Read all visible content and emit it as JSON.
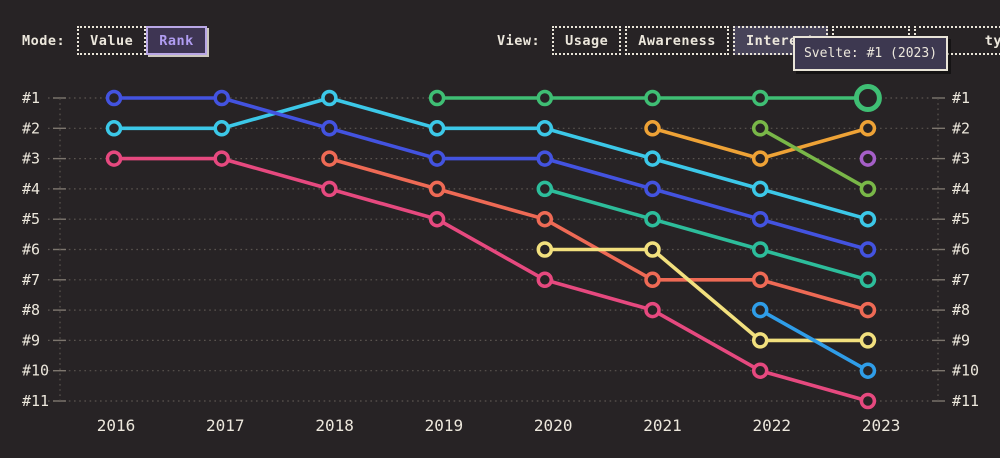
{
  "colors": {
    "background": "#272325",
    "text": "#ece7dc",
    "grid": "#5b5550",
    "tick": "#7d766e",
    "selected_mode_bg": "#3e3553",
    "selected_mode_border": "#b9a7e6",
    "selected_mode_text": "#b19df2",
    "selected_view_bg": "#484459",
    "tooltip_bg": "#3d3850",
    "tooltip_border": "#e9e4d8"
  },
  "mode_toolbar": {
    "label": "Mode:",
    "buttons": [
      {
        "label": "Value",
        "selected": false
      },
      {
        "label": "Rank",
        "selected": true
      }
    ]
  },
  "view_toolbar": {
    "label": "View:",
    "buttons": [
      {
        "label": "Usage",
        "selected": false
      },
      {
        "label": "Awareness",
        "selected": false
      },
      {
        "label": "Interest",
        "selected": true
      },
      {
        "label": "",
        "selected": false,
        "covered_by_tooltip": true
      },
      {
        "label": "ty",
        "selected": false,
        "partially_covered_by_tooltip": true
      }
    ]
  },
  "tooltip": {
    "text": "Svelte: #1 (2023)"
  },
  "chart_data": {
    "type": "line",
    "subtype": "bump-rank-chart",
    "x": [
      2016,
      2017,
      2018,
      2019,
      2020,
      2021,
      2022,
      2023
    ],
    "rank_labels": [
      "#1",
      "#2",
      "#3",
      "#4",
      "#5",
      "#6",
      "#7",
      "#8",
      "#9",
      "#10",
      "#11"
    ],
    "ylim": [
      1,
      11
    ],
    "grid": "dotted",
    "series": [
      {
        "name": "Svelte",
        "color": "#3fbe74",
        "ranks": [
          null,
          null,
          null,
          1,
          1,
          1,
          1,
          1
        ]
      },
      {
        "name": "orange",
        "color": "#eea236",
        "ranks": [
          null,
          null,
          null,
          null,
          null,
          2,
          3,
          2
        ]
      },
      {
        "name": "purple",
        "color": "#a55fc8",
        "ranks": [
          null,
          null,
          null,
          null,
          null,
          null,
          null,
          3
        ]
      },
      {
        "name": "olive",
        "color": "#79b748",
        "ranks": [
          null,
          null,
          null,
          null,
          null,
          null,
          2,
          4
        ]
      },
      {
        "name": "cyan",
        "color": "#3cc8e8",
        "ranks": [
          2,
          2,
          1,
          2,
          2,
          3,
          4,
          5
        ]
      },
      {
        "name": "blue",
        "color": "#4353e0",
        "ranks": [
          1,
          1,
          2,
          3,
          3,
          4,
          5,
          6
        ]
      },
      {
        "name": "teal",
        "color": "#2dbd9b",
        "ranks": [
          null,
          null,
          null,
          null,
          4,
          5,
          6,
          7
        ]
      },
      {
        "name": "salmon",
        "color": "#ee6a55",
        "ranks": [
          null,
          null,
          3,
          4,
          5,
          7,
          7,
          8
        ]
      },
      {
        "name": "yellow",
        "color": "#f2e07e",
        "ranks": [
          null,
          null,
          null,
          null,
          6,
          6,
          9,
          9
        ]
      },
      {
        "name": "sky",
        "color": "#2f9de8",
        "ranks": [
          null,
          null,
          null,
          null,
          null,
          null,
          8,
          10
        ]
      },
      {
        "name": "pink",
        "color": "#e6497f",
        "ranks": [
          3,
          3,
          4,
          5,
          7,
          8,
          10,
          11
        ]
      }
    ],
    "highlight": {
      "series": "Svelte",
      "year": 2023,
      "rank": 1
    }
  }
}
